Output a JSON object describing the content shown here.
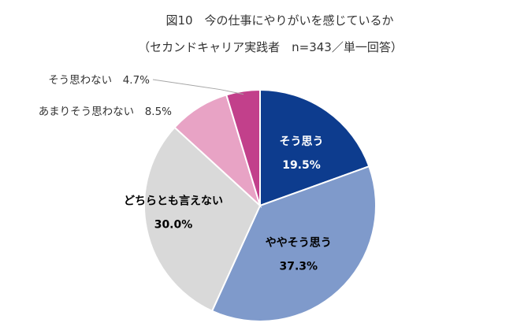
{
  "chart_data": {
    "type": "pie",
    "title": "図10　今の仕事にやりがいを感じているか",
    "subtitle": "（セカンドキャリア実践者　n=343／単一回答）",
    "unit": "%",
    "slices": [
      {
        "label": "そう思う",
        "value": 19.5,
        "value_label": "19.5%",
        "color": "#0d3c8e",
        "text_color": "#ffffff"
      },
      {
        "label": "ややそう思う",
        "value": 37.3,
        "value_label": "37.3%",
        "color": "#7f9acb",
        "text_color": "#000000"
      },
      {
        "label": "どちらとも言えない",
        "value": 30.0,
        "value_label": "30.0%",
        "color": "#d9d9d9",
        "text_color": "#000000"
      },
      {
        "label": "あまりそう思わない",
        "value": 8.5,
        "value_label": "8.5%",
        "color": "#e8a3c5",
        "text_color": "#333333"
      },
      {
        "label": "そう思わない",
        "value": 4.7,
        "value_label": "4.7%",
        "color": "#c2408b",
        "text_color": "#333333"
      }
    ]
  }
}
